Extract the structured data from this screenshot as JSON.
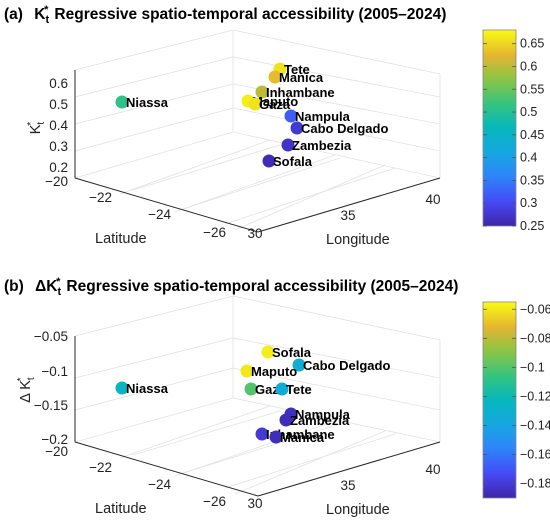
{
  "chart_data": [
    {
      "type": "scatter",
      "panel_label": "(a)",
      "title_symbol": "K",
      "title_sub": "t",
      "title_sup": "*",
      "title_text": "Regressive spatio-temporal accessibility (2005–2024)",
      "zlabel_symbol": "K",
      "zlabel_sub": "t",
      "zlabel_sup": "*",
      "xlabel": "Longitude",
      "ylabel": "Latitude",
      "xticks": [
        "30",
        "35",
        "40"
      ],
      "yticks": [
        "−20",
        "−22",
        "−24",
        "−26"
      ],
      "zticks": [
        "0.2",
        "0.3",
        "0.4",
        "0.5",
        "0.6"
      ],
      "zlim": [
        0.2,
        0.65
      ],
      "colorbar_ticks": [
        "0.65",
        "0.6",
        "0.55",
        "0.5",
        "0.45",
        "0.4",
        "0.35",
        "0.3",
        "0.25"
      ],
      "colorbar_range": [
        0.25,
        0.68
      ],
      "points": [
        {
          "label": "Niassa",
          "value": 0.51
        },
        {
          "label": "Tete",
          "value": 0.66
        },
        {
          "label": "Manica",
          "value": 0.63
        },
        {
          "label": "Inhambane",
          "value": 0.6
        },
        {
          "label": "Maputo",
          "value": 0.67
        },
        {
          "label": "Gaza",
          "value": 0.66
        },
        {
          "label": "Nampula",
          "value": 0.32
        },
        {
          "label": "Cabo Delgado",
          "value": 0.28
        },
        {
          "label": "Zambezia",
          "value": 0.27
        },
        {
          "label": "Sofala",
          "value": 0.26
        }
      ]
    },
    {
      "type": "scatter",
      "panel_label": "(b)",
      "title_symbol": "ΔK",
      "title_sub": "t",
      "title_sup": "*",
      "title_text": "Regressive spatio-temporal accessibility (2005–2024)",
      "zlabel_symbol": "Δ K",
      "zlabel_sub": "t",
      "zlabel_sup": "*",
      "xlabel": "Longitude",
      "ylabel": "Latitude",
      "xticks": [
        "30",
        "35",
        "40"
      ],
      "yticks": [
        "−20",
        "−22",
        "−24",
        "−26"
      ],
      "zticks": [
        "−0.2",
        "−0.15",
        "−0.1",
        "−0.05"
      ],
      "zlim": [
        -0.2,
        -0.05
      ],
      "colorbar_ticks": [
        "−0.06",
        "−0.08",
        "−0.1",
        "−0.12",
        "−0.14",
        "−0.16",
        "−0.18"
      ],
      "colorbar_range": [
        -0.19,
        -0.055
      ],
      "points": [
        {
          "label": "Niassa",
          "value": -0.125
        },
        {
          "label": "Sofala",
          "value": -0.058
        },
        {
          "label": "Cabo Delgado",
          "value": -0.132
        },
        {
          "label": "Maputo",
          "value": -0.06
        },
        {
          "label": "Gaza",
          "value": -0.1
        },
        {
          "label": "Tete",
          "value": -0.135
        },
        {
          "label": "Nampula",
          "value": -0.185
        },
        {
          "label": "Zambezia",
          "value": -0.187
        },
        {
          "label": "Inhambane",
          "value": -0.18
        },
        {
          "label": "Manica",
          "value": -0.186
        }
      ]
    }
  ]
}
